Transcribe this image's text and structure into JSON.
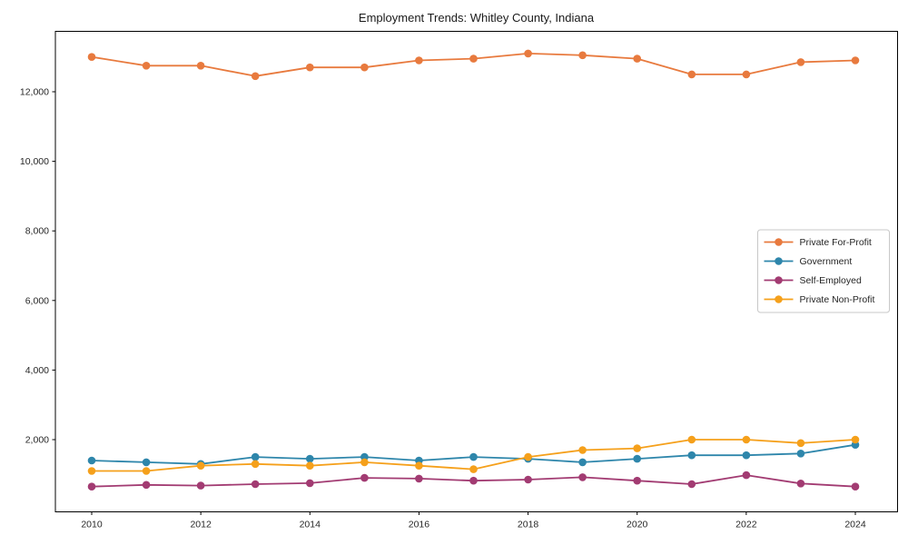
{
  "chart_data": {
    "type": "line",
    "title": "Employment Trends: Whitley County, Indiana",
    "xlabel": "",
    "ylabel": "",
    "grid": false,
    "legend_position": "center-right",
    "x": [
      2010,
      2011,
      2012,
      2013,
      2014,
      2015,
      2016,
      2017,
      2018,
      2019,
      2020,
      2021,
      2022,
      2023,
      2024
    ],
    "xticks": [
      2010,
      2012,
      2014,
      2016,
      2018,
      2020,
      2022,
      2024
    ],
    "xtick_labels": [
      "2010",
      "2012",
      "2014",
      "2016",
      "2018",
      "2020",
      "2022",
      "2024"
    ],
    "yticks": [
      2000,
      4000,
      6000,
      8000,
      10000,
      12000
    ],
    "ytick_labels": [
      "2,000",
      "4,000",
      "6,000",
      "8,000",
      "10,000",
      "12,000"
    ],
    "ylim": [
      -100,
      13750
    ],
    "xlim": [
      2009.3,
      2024.8
    ],
    "series": [
      {
        "name": "Private For-Profit",
        "color": "#E87A3E",
        "values": [
          13000,
          12750,
          12750,
          12450,
          12700,
          12700,
          12900,
          12950,
          13100,
          13050,
          12950,
          12500,
          12500,
          12850,
          12900
        ]
      },
      {
        "name": "Government",
        "color": "#2E86AB",
        "values": [
          1400,
          1350,
          1300,
          1500,
          1450,
          1500,
          1400,
          1500,
          1450,
          1350,
          1450,
          1550,
          1550,
          1600,
          1850
        ]
      },
      {
        "name": "Self-Employed",
        "color": "#A23B72",
        "values": [
          650,
          700,
          680,
          720,
          750,
          900,
          880,
          820,
          850,
          920,
          820,
          720,
          980,
          740,
          650
        ]
      },
      {
        "name": "Private Non-Profit",
        "color": "#F5A01B",
        "values": [
          1100,
          1100,
          1250,
          1300,
          1250,
          1350,
          1250,
          1150,
          1500,
          1700,
          1750,
          2000,
          2000,
          1900,
          2000
        ]
      }
    ]
  }
}
